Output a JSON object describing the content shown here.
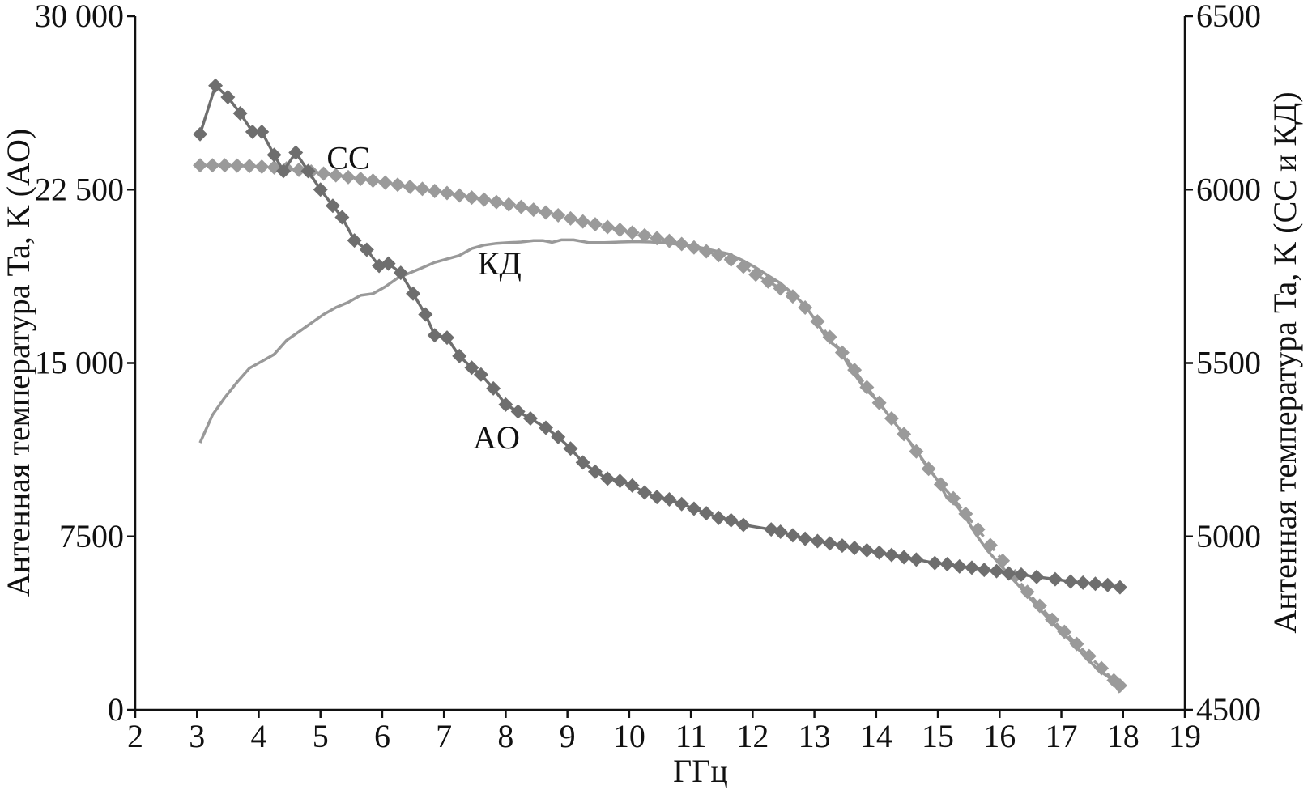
{
  "chart_data": {
    "type": "line",
    "xlabel": "ГГц",
    "ylabel_left": "Антенная температура Ta, K (AO)",
    "ylabel_right": "Антенная температура Ta, K (CC и КД)",
    "xlim": [
      2,
      19
    ],
    "ylim_left": [
      0,
      30000
    ],
    "ylim_right": [
      4500,
      6500
    ],
    "x_ticks": [
      "2",
      "3",
      "4",
      "5",
      "6",
      "7",
      "8",
      "9",
      "10",
      "11",
      "12",
      "13",
      "14",
      "15",
      "16",
      "17",
      "18",
      "19"
    ],
    "y_left_ticks": [
      {
        "value": 0,
        "label": "0"
      },
      {
        "value": 7500,
        "label": "7500"
      },
      {
        "value": 15000,
        "label": "15 000"
      },
      {
        "value": 22500,
        "label": "22 500"
      },
      {
        "value": 30000,
        "label": "30 000"
      }
    ],
    "y_right_ticks": [
      {
        "value": 4500,
        "label": "4500"
      },
      {
        "value": 5000,
        "label": "5000"
      },
      {
        "value": 5500,
        "label": "5500"
      },
      {
        "value": 6000,
        "label": "6000"
      },
      {
        "value": 6500,
        "label": "6500"
      }
    ],
    "grid": false,
    "legend": "none",
    "series": [
      {
        "name": "AO",
        "axis": "left",
        "color": "#6e6e6e",
        "marker": "diamond",
        "line": "solid",
        "label_pos": {
          "x": 7.85,
          "y": 11300
        },
        "points": [
          [
            3.05,
            24900
          ],
          [
            3.3,
            27000
          ],
          [
            3.5,
            26500
          ],
          [
            3.7,
            25800
          ],
          [
            3.9,
            25000
          ],
          [
            4.05,
            25000
          ],
          [
            4.25,
            24000
          ],
          [
            4.4,
            23300
          ],
          [
            4.6,
            24100
          ],
          [
            4.8,
            23300
          ],
          [
            5.0,
            22500
          ],
          [
            5.2,
            21800
          ],
          [
            5.35,
            21300
          ],
          [
            5.55,
            20300
          ],
          [
            5.75,
            19900
          ],
          [
            5.95,
            19200
          ],
          [
            6.1,
            19300
          ],
          [
            6.3,
            18900
          ],
          [
            6.5,
            18000
          ],
          [
            6.7,
            17100
          ],
          [
            6.85,
            16200
          ],
          [
            7.05,
            16100
          ],
          [
            7.25,
            15300
          ],
          [
            7.45,
            14800
          ],
          [
            7.6,
            14500
          ],
          [
            7.8,
            13900
          ],
          [
            8.0,
            13200
          ],
          [
            8.2,
            12900
          ],
          [
            8.4,
            12600
          ],
          [
            8.65,
            12200
          ],
          [
            8.85,
            11800
          ],
          [
            9.05,
            11300
          ],
          [
            9.25,
            10700
          ],
          [
            9.45,
            10300
          ],
          [
            9.65,
            10000
          ],
          [
            9.85,
            9900
          ],
          [
            10.05,
            9700
          ],
          [
            10.25,
            9400
          ],
          [
            10.45,
            9200
          ],
          [
            10.65,
            9100
          ],
          [
            10.85,
            8900
          ],
          [
            11.05,
            8700
          ],
          [
            11.25,
            8500
          ],
          [
            11.45,
            8300
          ],
          [
            11.65,
            8200
          ],
          [
            11.85,
            8000
          ],
          [
            12.3,
            7800
          ],
          [
            12.45,
            7700
          ],
          [
            12.65,
            7550
          ],
          [
            12.85,
            7400
          ],
          [
            13.05,
            7300
          ],
          [
            13.25,
            7200
          ],
          [
            13.45,
            7100
          ],
          [
            13.65,
            7000
          ],
          [
            13.85,
            6900
          ],
          [
            14.05,
            6800
          ],
          [
            14.25,
            6700
          ],
          [
            14.45,
            6600
          ],
          [
            14.65,
            6500
          ],
          [
            14.95,
            6350
          ],
          [
            15.15,
            6300
          ],
          [
            15.35,
            6200
          ],
          [
            15.55,
            6150
          ],
          [
            15.75,
            6050
          ],
          [
            15.95,
            6000
          ],
          [
            16.15,
            5900
          ],
          [
            16.35,
            5850
          ],
          [
            16.6,
            5750
          ],
          [
            16.9,
            5650
          ],
          [
            17.15,
            5550
          ],
          [
            17.35,
            5500
          ],
          [
            17.55,
            5450
          ],
          [
            17.75,
            5400
          ],
          [
            17.95,
            5300
          ]
        ]
      },
      {
        "name": "CC",
        "axis": "right",
        "color": "#9a9a9a",
        "marker": "diamond",
        "line": "dashed",
        "label_pos": {
          "x": 5.45,
          "y": 6060
        },
        "points": [
          [
            3.05,
            6070
          ],
          [
            3.25,
            6070
          ],
          [
            3.45,
            6070
          ],
          [
            3.65,
            6069
          ],
          [
            3.85,
            6068
          ],
          [
            4.05,
            6066
          ],
          [
            4.25,
            6064
          ],
          [
            4.45,
            6061
          ],
          [
            4.65,
            6057
          ],
          [
            4.85,
            6052
          ],
          [
            5.05,
            6046
          ],
          [
            5.25,
            6041
          ],
          [
            5.45,
            6036
          ],
          [
            5.65,
            6031
          ],
          [
            5.85,
            6026
          ],
          [
            6.05,
            6020
          ],
          [
            6.25,
            6014
          ],
          [
            6.45,
            6008
          ],
          [
            6.65,
            6002
          ],
          [
            6.85,
            5996
          ],
          [
            7.05,
            5990
          ],
          [
            7.25,
            5983
          ],
          [
            7.45,
            5977
          ],
          [
            7.65,
            5971
          ],
          [
            7.85,
            5964
          ],
          [
            8.05,
            5957
          ],
          [
            8.25,
            5950
          ],
          [
            8.45,
            5942
          ],
          [
            8.65,
            5934
          ],
          [
            8.85,
            5926
          ],
          [
            9.05,
            5917
          ],
          [
            9.25,
            5908
          ],
          [
            9.45,
            5900
          ],
          [
            9.65,
            5892
          ],
          [
            9.85,
            5884
          ],
          [
            10.05,
            5876
          ],
          [
            10.25,
            5868
          ],
          [
            10.45,
            5860
          ],
          [
            10.65,
            5852
          ],
          [
            10.85,
            5843
          ],
          [
            11.05,
            5833
          ],
          [
            11.25,
            5822
          ],
          [
            11.45,
            5811
          ],
          [
            11.65,
            5798
          ],
          [
            11.85,
            5778
          ],
          [
            12.05,
            5755
          ],
          [
            12.25,
            5735
          ],
          [
            12.45,
            5715
          ],
          [
            12.65,
            5692
          ],
          [
            12.85,
            5660
          ],
          [
            13.05,
            5620
          ],
          [
            13.25,
            5575
          ],
          [
            13.45,
            5530
          ],
          [
            13.65,
            5480
          ],
          [
            13.85,
            5430
          ],
          [
            14.05,
            5385
          ],
          [
            14.25,
            5340
          ],
          [
            14.45,
            5295
          ],
          [
            14.65,
            5245
          ],
          [
            14.85,
            5195
          ],
          [
            15.05,
            5150
          ],
          [
            15.25,
            5110
          ],
          [
            15.45,
            5065
          ],
          [
            15.65,
            5020
          ],
          [
            15.85,
            4975
          ],
          [
            16.05,
            4930
          ],
          [
            16.25,
            4885
          ],
          [
            16.45,
            4840
          ],
          [
            16.65,
            4800
          ],
          [
            16.85,
            4760
          ],
          [
            17.05,
            4725
          ],
          [
            17.25,
            4690
          ],
          [
            17.45,
            4655
          ],
          [
            17.65,
            4620
          ],
          [
            17.85,
            4585
          ],
          [
            17.95,
            4570
          ]
        ]
      },
      {
        "name": "КД",
        "axis": "right",
        "color": "#999999",
        "marker": "none",
        "line": "solid",
        "label_pos": {
          "x": 7.9,
          "y": 5755
        },
        "points": [
          [
            3.05,
            5270
          ],
          [
            3.25,
            5350
          ],
          [
            3.45,
            5400
          ],
          [
            3.65,
            5445
          ],
          [
            3.85,
            5485
          ],
          [
            4.05,
            5505
          ],
          [
            4.25,
            5525
          ],
          [
            4.45,
            5565
          ],
          [
            4.65,
            5590
          ],
          [
            4.85,
            5615
          ],
          [
            5.05,
            5640
          ],
          [
            5.25,
            5660
          ],
          [
            5.45,
            5675
          ],
          [
            5.65,
            5695
          ],
          [
            5.85,
            5700
          ],
          [
            6.05,
            5720
          ],
          [
            6.25,
            5745
          ],
          [
            6.45,
            5760
          ],
          [
            6.65,
            5775
          ],
          [
            6.85,
            5790
          ],
          [
            7.05,
            5800
          ],
          [
            7.25,
            5810
          ],
          [
            7.45,
            5830
          ],
          [
            7.65,
            5840
          ],
          [
            7.85,
            5845
          ],
          [
            8.05,
            5847
          ],
          [
            8.25,
            5849
          ],
          [
            8.45,
            5853
          ],
          [
            8.6,
            5853
          ],
          [
            8.75,
            5848
          ],
          [
            8.9,
            5855
          ],
          [
            9.1,
            5855
          ],
          [
            9.35,
            5847
          ],
          [
            9.6,
            5847
          ],
          [
            9.85,
            5849
          ],
          [
            10.1,
            5850
          ],
          [
            10.35,
            5849
          ],
          [
            10.6,
            5846
          ],
          [
            10.85,
            5841
          ],
          [
            11.1,
            5835
          ],
          [
            11.35,
            5825
          ],
          [
            11.6,
            5815
          ],
          [
            11.85,
            5795
          ],
          [
            12.05,
            5775
          ],
          [
            12.25,
            5752
          ],
          [
            12.45,
            5730
          ],
          [
            12.65,
            5700
          ],
          [
            12.85,
            5665
          ],
          [
            13.05,
            5615
          ],
          [
            13.2,
            5570
          ],
          [
            13.4,
            5540
          ],
          [
            13.6,
            5480
          ],
          [
            13.8,
            5430
          ],
          [
            14.0,
            5395
          ],
          [
            14.2,
            5350
          ],
          [
            14.4,
            5305
          ],
          [
            14.6,
            5260
          ],
          [
            14.8,
            5210
          ],
          [
            15.0,
            5160
          ],
          [
            15.15,
            5110
          ],
          [
            15.3,
            5090
          ],
          [
            15.45,
            5055
          ],
          [
            15.6,
            5010
          ],
          [
            15.8,
            4960
          ],
          [
            16.0,
            4920
          ],
          [
            16.2,
            4880
          ],
          [
            16.4,
            4840
          ],
          [
            16.6,
            4800
          ],
          [
            16.8,
            4760
          ],
          [
            17.0,
            4725
          ],
          [
            17.2,
            4690
          ],
          [
            17.4,
            4650
          ],
          [
            17.6,
            4615
          ],
          [
            17.8,
            4590
          ],
          [
            17.95,
            4550
          ]
        ]
      }
    ]
  }
}
